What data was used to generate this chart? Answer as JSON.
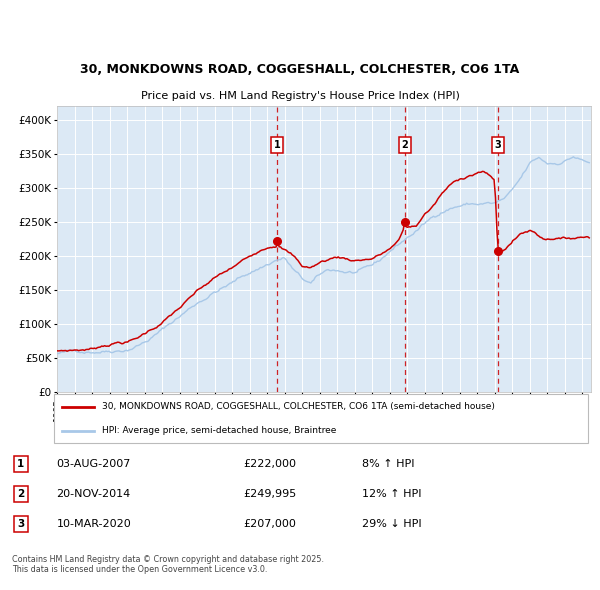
{
  "title_line1": "30, MONKDOWNS ROAD, COGGESHALL, COLCHESTER, CO6 1TA",
  "title_line2": "Price paid vs. HM Land Registry's House Price Index (HPI)",
  "legend_line1": "30, MONKDOWNS ROAD, COGGESHALL, COLCHESTER, CO6 1TA (semi-detached house)",
  "legend_line2": "HPI: Average price, semi-detached house, Braintree",
  "footer": "Contains HM Land Registry data © Crown copyright and database right 2025.\nThis data is licensed under the Open Government Licence v3.0.",
  "transactions": [
    {
      "num": 1,
      "date": "03-AUG-2007",
      "price": "£222,000",
      "change": "8% ↑ HPI",
      "year": 2007.58
    },
    {
      "num": 2,
      "date": "20-NOV-2014",
      "price": "£249,995",
      "change": "12% ↑ HPI",
      "year": 2014.88
    },
    {
      "num": 3,
      "date": "10-MAR-2020",
      "price": "£207,000",
      "change": "29% ↓ HPI",
      "year": 2020.19
    }
  ],
  "sale_markers": [
    {
      "year": 2007.58,
      "price": 222000
    },
    {
      "year": 2014.88,
      "price": 249995
    },
    {
      "year": 2020.19,
      "price": 207000
    }
  ],
  "hpi_color": "#a8c8e8",
  "price_color": "#cc0000",
  "marker_color": "#cc0000",
  "vline_color": "#cc0000",
  "background_color": "#dce9f5",
  "grid_color": "#ffffff",
  "ylim": [
    0,
    420000
  ],
  "xlim_start": 1995.0,
  "xlim_end": 2025.5,
  "hpi_anchors": [
    [
      1995.0,
      57000
    ],
    [
      1996.0,
      59000
    ],
    [
      1997.0,
      62000
    ],
    [
      1998.0,
      66000
    ],
    [
      1999.0,
      71000
    ],
    [
      2000.0,
      83000
    ],
    [
      2001.0,
      100000
    ],
    [
      2002.0,
      120000
    ],
    [
      2003.0,
      140000
    ],
    [
      2004.0,
      158000
    ],
    [
      2005.0,
      170000
    ],
    [
      2006.0,
      185000
    ],
    [
      2007.0,
      198000
    ],
    [
      2007.5,
      205000
    ],
    [
      2008.0,
      208000
    ],
    [
      2008.5,
      190000
    ],
    [
      2009.0,
      175000
    ],
    [
      2009.5,
      168000
    ],
    [
      2010.0,
      178000
    ],
    [
      2010.5,
      185000
    ],
    [
      2011.0,
      185000
    ],
    [
      2011.5,
      183000
    ],
    [
      2012.0,
      182000
    ],
    [
      2012.5,
      183000
    ],
    [
      2013.0,
      187000
    ],
    [
      2013.5,
      195000
    ],
    [
      2014.0,
      208000
    ],
    [
      2014.5,
      218000
    ],
    [
      2015.0,
      228000
    ],
    [
      2015.5,
      238000
    ],
    [
      2016.0,
      248000
    ],
    [
      2016.5,
      258000
    ],
    [
      2017.0,
      268000
    ],
    [
      2017.5,
      274000
    ],
    [
      2018.0,
      278000
    ],
    [
      2018.5,
      280000
    ],
    [
      2019.0,
      280000
    ],
    [
      2019.5,
      281000
    ],
    [
      2020.0,
      280000
    ],
    [
      2020.5,
      285000
    ],
    [
      2021.0,
      295000
    ],
    [
      2021.5,
      312000
    ],
    [
      2022.0,
      332000
    ],
    [
      2022.5,
      340000
    ],
    [
      2023.0,
      332000
    ],
    [
      2023.5,
      333000
    ],
    [
      2024.0,
      338000
    ],
    [
      2024.5,
      345000
    ],
    [
      2025.3,
      335000
    ]
  ],
  "price_anchors": [
    [
      1995.0,
      61000
    ],
    [
      1996.0,
      63000
    ],
    [
      1997.0,
      65000
    ],
    [
      1997.5,
      70000
    ],
    [
      1998.0,
      74000
    ],
    [
      1998.5,
      77000
    ],
    [
      1999.0,
      78000
    ],
    [
      1999.5,
      82000
    ],
    [
      2000.0,
      90000
    ],
    [
      2001.0,
      107000
    ],
    [
      2002.0,
      128000
    ],
    [
      2003.0,
      150000
    ],
    [
      2004.0,
      168000
    ],
    [
      2005.0,
      182000
    ],
    [
      2006.0,
      198000
    ],
    [
      2006.5,
      208000
    ],
    [
      2007.0,
      216000
    ],
    [
      2007.58,
      222000
    ],
    [
      2008.0,
      215000
    ],
    [
      2008.5,
      205000
    ],
    [
      2009.0,
      190000
    ],
    [
      2009.5,
      188000
    ],
    [
      2010.0,
      195000
    ],
    [
      2010.5,
      200000
    ],
    [
      2011.0,
      204000
    ],
    [
      2011.5,
      202000
    ],
    [
      2012.0,
      200000
    ],
    [
      2012.5,
      202000
    ],
    [
      2013.0,
      204000
    ],
    [
      2013.5,
      210000
    ],
    [
      2014.0,
      218000
    ],
    [
      2014.5,
      228000
    ],
    [
      2014.88,
      249995
    ],
    [
      2015.0,
      248000
    ],
    [
      2015.5,
      250000
    ],
    [
      2016.0,
      268000
    ],
    [
      2016.5,
      280000
    ],
    [
      2017.0,
      298000
    ],
    [
      2017.5,
      310000
    ],
    [
      2018.0,
      318000
    ],
    [
      2018.5,
      325000
    ],
    [
      2019.0,
      330000
    ],
    [
      2019.3,
      332000
    ],
    [
      2019.5,
      328000
    ],
    [
      2019.8,
      322000
    ],
    [
      2020.0,
      318000
    ],
    [
      2020.19,
      207000
    ],
    [
      2020.4,
      213000
    ],
    [
      2020.7,
      220000
    ],
    [
      2021.0,
      228000
    ],
    [
      2021.3,
      235000
    ],
    [
      2021.5,
      240000
    ],
    [
      2022.0,
      245000
    ],
    [
      2022.3,
      242000
    ],
    [
      2022.5,
      238000
    ],
    [
      2022.8,
      235000
    ],
    [
      2023.0,
      234000
    ],
    [
      2023.3,
      236000
    ],
    [
      2023.5,
      238000
    ],
    [
      2024.0,
      235000
    ],
    [
      2024.5,
      237000
    ],
    [
      2025.3,
      240000
    ]
  ]
}
